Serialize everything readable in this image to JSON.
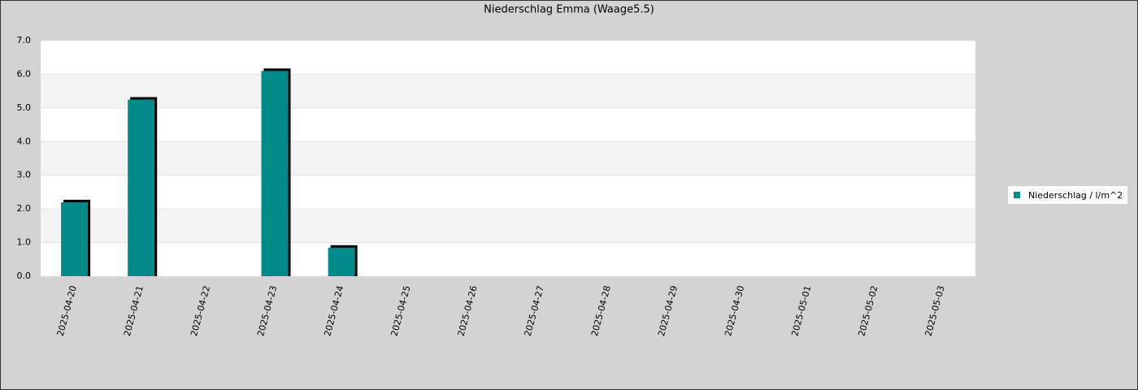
{
  "chart_data": {
    "type": "bar",
    "title": "Niederschlag Emma (Waage5.5)",
    "categories": [
      "2025-04-20",
      "2025-04-21",
      "2025-04-22",
      "2025-04-23",
      "2025-04-24",
      "2025-04-25",
      "2025-04-26",
      "2025-04-27",
      "2025-04-28",
      "2025-04-29",
      "2025-04-30",
      "2025-05-01",
      "2025-05-02",
      "2025-05-03"
    ],
    "series": [
      {
        "name": "Niederschlag / l/m^2",
        "color": "#008b8b",
        "values": [
          2.2,
          5.25,
          0,
          6.1,
          0.85,
          0,
          0,
          0,
          0,
          0,
          0,
          0,
          0,
          0
        ]
      }
    ],
    "ylim": [
      0,
      7
    ],
    "yticks": [
      {
        "value": 0,
        "label": "0.0"
      },
      {
        "value": 1,
        "label": "1.0"
      },
      {
        "value": 2,
        "label": "2.0"
      },
      {
        "value": 3,
        "label": "3.0"
      },
      {
        "value": 4,
        "label": "4.0"
      },
      {
        "value": 5,
        "label": "5.0"
      },
      {
        "value": 6,
        "label": "6.0"
      },
      {
        "value": 7,
        "label": "7.0"
      }
    ],
    "grid": true,
    "legend": "right"
  }
}
